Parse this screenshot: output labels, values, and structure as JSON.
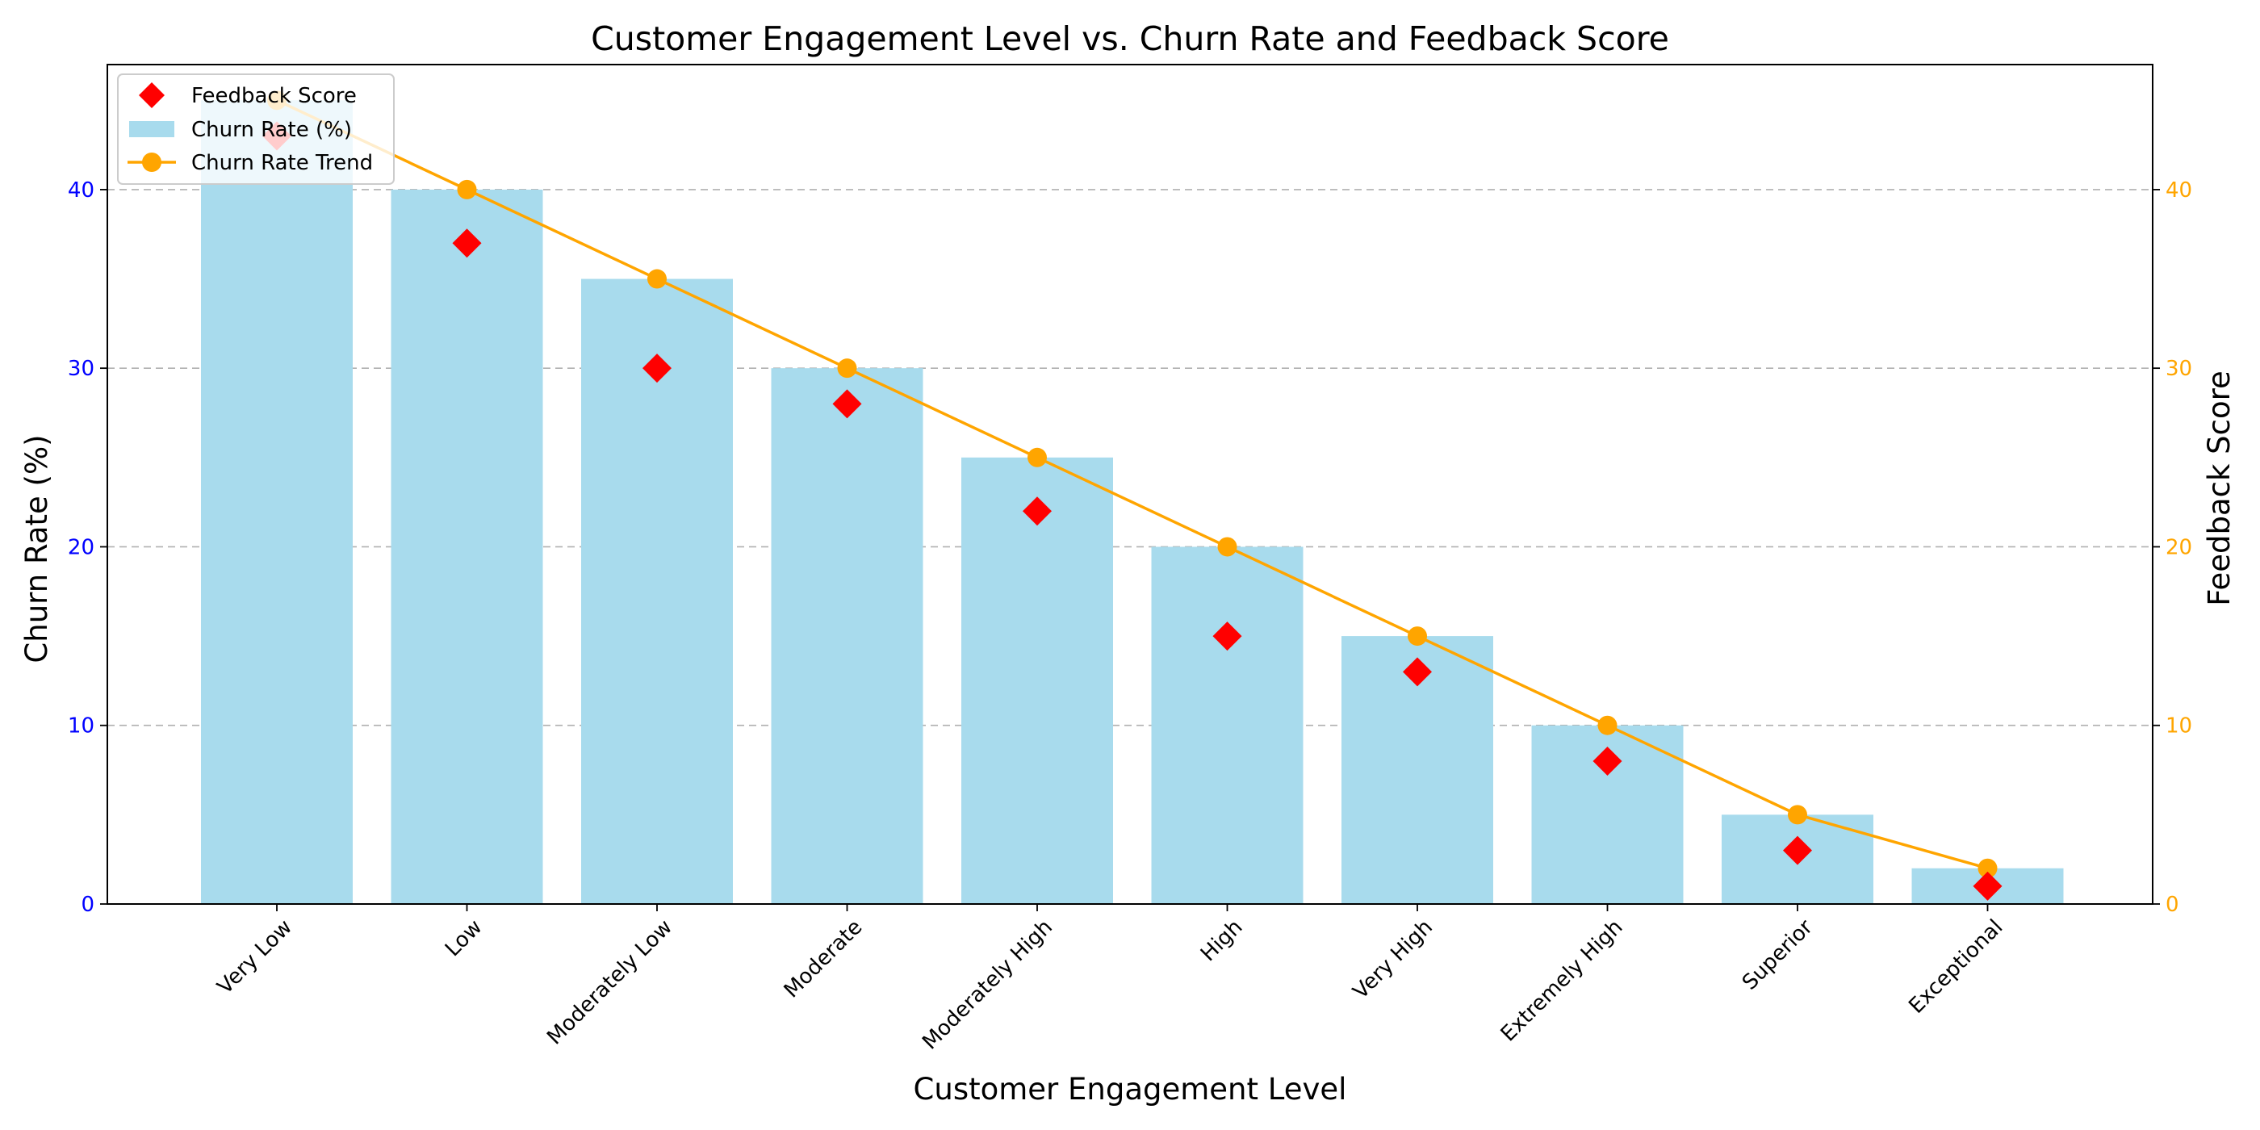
{
  "chart_data": {
    "type": "bar",
    "title": "Customer Engagement Level vs. Churn Rate and Feedback Score",
    "xlabel": "Customer Engagement Level",
    "ylabel": "Churn Rate (%)",
    "ylabel_right": "Feedback Score",
    "categories": [
      "Very Low",
      "Low",
      "Moderately Low",
      "Moderate",
      "Moderately High",
      "High",
      "Very High",
      "Extremely High",
      "Superior",
      "Exceptional"
    ],
    "ylim": [
      0,
      47
    ],
    "ylim_right": [
      0,
      47
    ],
    "yticks": [
      0,
      10,
      20,
      30,
      40
    ],
    "yticks_right": [
      0,
      10,
      20,
      30,
      40
    ],
    "grid": true,
    "legend_position": "top-left",
    "series": [
      {
        "name": "Churn Rate (%)",
        "type": "bar",
        "axis": "left",
        "color": "#a8dbed",
        "values": [
          45,
          40,
          35,
          30,
          25,
          20,
          15,
          10,
          5,
          2
        ]
      },
      {
        "name": "Churn Rate Trend",
        "type": "line",
        "axis": "right",
        "color": "#ffa500",
        "marker": "circle",
        "values": [
          45,
          40,
          35,
          30,
          25,
          20,
          15,
          10,
          5,
          2
        ]
      },
      {
        "name": "Feedback Score",
        "type": "scatter",
        "axis": "right",
        "color": "#ff0000",
        "marker": "diamond",
        "values": [
          43,
          37,
          30,
          28,
          22,
          15,
          13,
          8,
          3,
          1
        ]
      }
    ],
    "colors": {
      "left_axis_ticks": "#0000ff",
      "right_axis_ticks": "#ffa500",
      "grid": "#b0b0b0"
    }
  }
}
